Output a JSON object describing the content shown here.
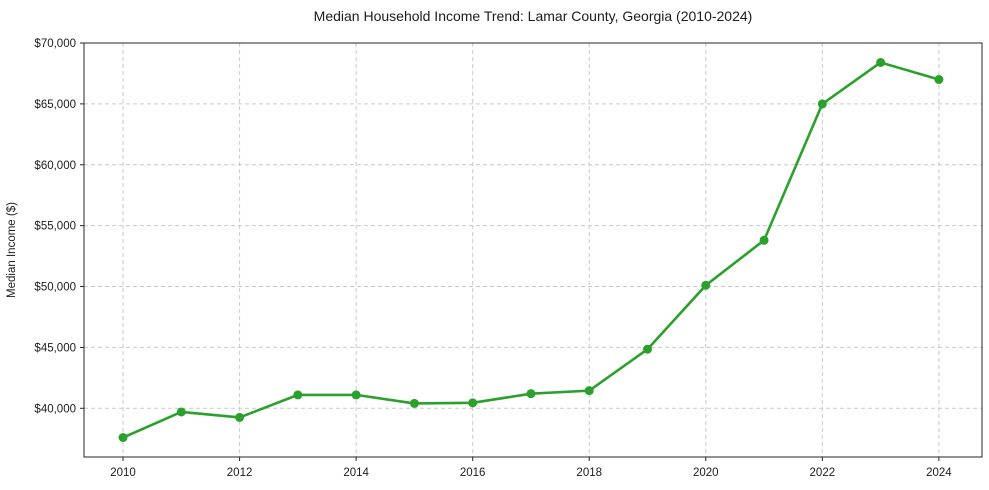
{
  "chart_data": {
    "type": "line",
    "title": "Median Household Income Trend: Lamar County, Georgia (2010-2024)",
    "xlabel": "",
    "ylabel": "Median Income ($)",
    "x": [
      2010,
      2011,
      2012,
      2013,
      2014,
      2015,
      2016,
      2017,
      2018,
      2019,
      2020,
      2021,
      2022,
      2023,
      2024
    ],
    "series": [
      {
        "name": "Median household income",
        "color": "#2ca02c",
        "values": [
          37600,
          39700,
          39250,
          41100,
          41100,
          40400,
          40450,
          41200,
          41450,
          44850,
          50100,
          53800,
          65000,
          68400,
          67000
        ]
      }
    ],
    "xlim": [
      2009.33,
      2024.74
    ],
    "ylim": [
      36000,
      70000
    ],
    "xticks": [
      2010,
      2012,
      2014,
      2016,
      2018,
      2020,
      2022,
      2024
    ],
    "xtick_labels": [
      "2010",
      "2012",
      "2014",
      "2016",
      "2018",
      "2020",
      "2022",
      "2024"
    ],
    "yticks": [
      40000,
      45000,
      50000,
      55000,
      60000,
      65000,
      70000
    ],
    "ytick_labels": [
      "$40,000",
      "$45,000",
      "$50,000",
      "$55,000",
      "$60,000",
      "$65,000",
      "$70,000"
    ],
    "grid": true,
    "grid_style": "dashed",
    "grid_color": "#c9c9c9",
    "legend_position": "none",
    "marker": "circle",
    "marker_radius": 4.5,
    "background": "#ffffff"
  }
}
